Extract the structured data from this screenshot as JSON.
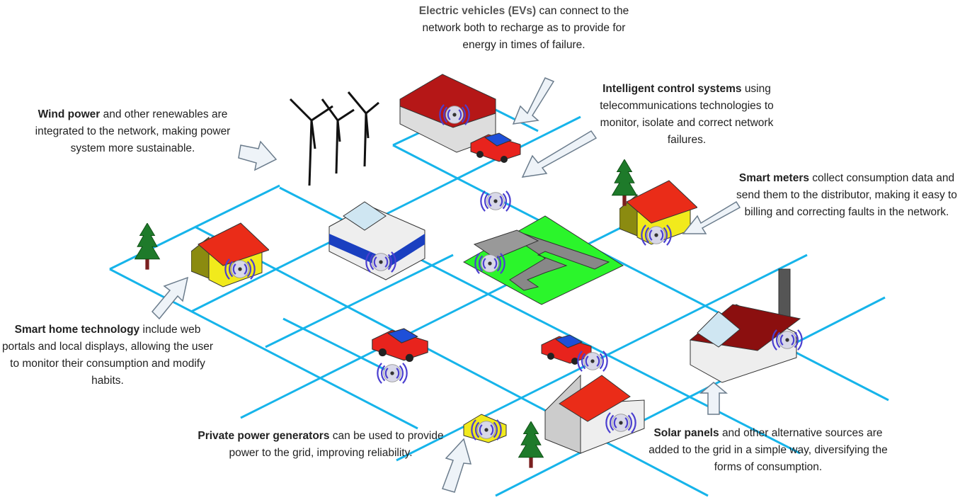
{
  "annotations": [
    {
      "bold": "Electric vehicles (EVs)",
      "text": "can connect to the network both to recharge as to provide for energy in times of failure."
    },
    {
      "bold": "Intelligent control systems",
      "text": "using telecommunications technologies to monitor, isolate and correct network failures."
    },
    {
      "bold": "Wind power",
      "text": "and other renewables are integrated to the network, making power system more sustainable."
    },
    {
      "bold": "Smart meters",
      "text": "collect consumption data and send them to the distributor, making it easy to billing and correcting faults in the network."
    },
    {
      "bold": "Smart home technology",
      "text": "include web portals and local displays, allowing the user to monitor their consumption and modify habits."
    },
    {
      "bold": "Private power generators",
      "text": "can be used to provide power to the grid, improving reliability."
    },
    {
      "bold": "Solar panels",
      "text": "and other alternative sources are added to the grid in a simple way, diversifying the forms of consumption."
    }
  ]
}
